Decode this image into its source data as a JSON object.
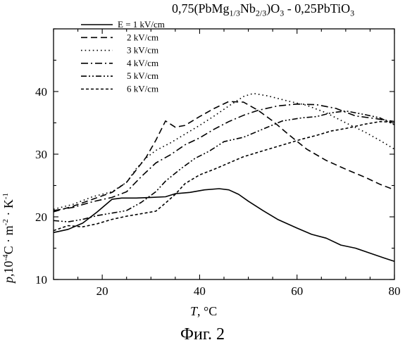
{
  "chart_data": {
    "type": "line",
    "title_parts": {
      "p1": "0,75(PbMg",
      "s1": "1/3",
      "p2": "Nb",
      "s2": "2/3",
      "p3": ")O",
      "s3": "3",
      "p4": " - 0,25PbTiO",
      "s4": "3"
    },
    "ylabel_parts": {
      "p": "p",
      "a": ",10",
      "e1": "-4",
      "b": "C · m",
      "e2": "-2",
      "c": "· K",
      "e3": "-1"
    },
    "xlabel_parts": {
      "t": "T",
      "u": ", °C"
    },
    "xlim": [
      10,
      80
    ],
    "ylim": [
      10,
      50
    ],
    "xticks": [
      20,
      40,
      60,
      80
    ],
    "yticks": [
      10,
      20,
      30,
      40
    ],
    "legend_position": "top-left",
    "series": [
      {
        "name": "E = 1 kV/cm",
        "dash": "solid",
        "points": [
          [
            10,
            17.5
          ],
          [
            13,
            18
          ],
          [
            16,
            19
          ],
          [
            19,
            20.8
          ],
          [
            22,
            22.8
          ],
          [
            24,
            23
          ],
          [
            27,
            23
          ],
          [
            30,
            23.1
          ],
          [
            33,
            23.2
          ],
          [
            35,
            23.7
          ],
          [
            38,
            23.9
          ],
          [
            41,
            24.3
          ],
          [
            44,
            24.5
          ],
          [
            46,
            24.3
          ],
          [
            48,
            23.6
          ],
          [
            50,
            22.5
          ],
          [
            53,
            21
          ],
          [
            56,
            19.6
          ],
          [
            60,
            18.2
          ],
          [
            63,
            17.2
          ],
          [
            66,
            16.6
          ],
          [
            69,
            15.5
          ],
          [
            72,
            15
          ],
          [
            75,
            14.2
          ],
          [
            78,
            13.4
          ],
          [
            80,
            12.9
          ]
        ]
      },
      {
        "name": "2 kV/cm",
        "dash": "dashed",
        "points": [
          [
            10,
            20.8
          ],
          [
            14,
            21.7
          ],
          [
            18,
            22.8
          ],
          [
            22,
            23.9
          ],
          [
            25,
            25.5
          ],
          [
            27,
            27.5
          ],
          [
            29,
            29.5
          ],
          [
            31,
            32.2
          ],
          [
            33,
            35.3
          ],
          [
            35,
            34.3
          ],
          [
            37,
            34.6
          ],
          [
            40,
            36
          ],
          [
            43,
            37.3
          ],
          [
            46,
            38.4
          ],
          [
            49,
            38.3
          ],
          [
            52,
            37
          ],
          [
            55,
            35.3
          ],
          [
            58,
            33.3
          ],
          [
            62,
            30.8
          ],
          [
            66,
            29
          ],
          [
            70,
            27.6
          ],
          [
            74,
            26.3
          ],
          [
            77,
            25.2
          ],
          [
            80,
            24.3
          ]
        ]
      },
      {
        "name": "3 kV/cm",
        "dash": "dotted",
        "points": [
          [
            10,
            21.2
          ],
          [
            14,
            22
          ],
          [
            18,
            23.2
          ],
          [
            22,
            24
          ],
          [
            25,
            25.5
          ],
          [
            27,
            27.7
          ],
          [
            29,
            29.4
          ],
          [
            31,
            30.6
          ],
          [
            34,
            31.8
          ],
          [
            37,
            33.2
          ],
          [
            40,
            34.6
          ],
          [
            43,
            36.1
          ],
          [
            46,
            37.7
          ],
          [
            49,
            39.2
          ],
          [
            51,
            39.7
          ],
          [
            54,
            39.3
          ],
          [
            58,
            38.5
          ],
          [
            62,
            37.8
          ],
          [
            66,
            36.6
          ],
          [
            70,
            35
          ],
          [
            74,
            33.5
          ],
          [
            77,
            32.2
          ],
          [
            80,
            30.8
          ]
        ]
      },
      {
        "name": "4 kV/cm",
        "dash": "dashdot",
        "points": [
          [
            10,
            21
          ],
          [
            14,
            21.5
          ],
          [
            18,
            22.4
          ],
          [
            22,
            23.1
          ],
          [
            25,
            24
          ],
          [
            28,
            26.4
          ],
          [
            31,
            28.6
          ],
          [
            34,
            29.9
          ],
          [
            37,
            31.5
          ],
          [
            40,
            32.6
          ],
          [
            43,
            34
          ],
          [
            46,
            35.2
          ],
          [
            49,
            36.2
          ],
          [
            52,
            37
          ],
          [
            56,
            37.7
          ],
          [
            60,
            38
          ],
          [
            64,
            37.9
          ],
          [
            68,
            37.3
          ],
          [
            72,
            36.1
          ],
          [
            76,
            35.7
          ],
          [
            80,
            35.2
          ]
        ]
      },
      {
        "name": "5 kV/cm",
        "dash": "dashdotdot",
        "points": [
          [
            10,
            19.4
          ],
          [
            13,
            19.2
          ],
          [
            16,
            19.6
          ],
          [
            19,
            20.2
          ],
          [
            22,
            20.6
          ],
          [
            25,
            21
          ],
          [
            28,
            22.3
          ],
          [
            31,
            24
          ],
          [
            33,
            25.7
          ],
          [
            36,
            27.6
          ],
          [
            39,
            29.3
          ],
          [
            42,
            30.5
          ],
          [
            45,
            32
          ],
          [
            49,
            32.7
          ],
          [
            53,
            34
          ],
          [
            57,
            35.3
          ],
          [
            61,
            35.8
          ],
          [
            64,
            36
          ],
          [
            67,
            36.6
          ],
          [
            70,
            36.9
          ],
          [
            74,
            36.3
          ],
          [
            77,
            35.8
          ],
          [
            80,
            34.7
          ]
        ]
      },
      {
        "name": "6 kV/cm",
        "dash": "shortdash",
        "points": [
          [
            10,
            17.8
          ],
          [
            13,
            18.6
          ],
          [
            16,
            18.4
          ],
          [
            19,
            18.9
          ],
          [
            22,
            19.6
          ],
          [
            25,
            20.1
          ],
          [
            28,
            20.5
          ],
          [
            31,
            20.9
          ],
          [
            33,
            22.2
          ],
          [
            35,
            23.6
          ],
          [
            37,
            25.3
          ],
          [
            40,
            26.7
          ],
          [
            43,
            27.6
          ],
          [
            46,
            28.6
          ],
          [
            49,
            29.6
          ],
          [
            52,
            30.3
          ],
          [
            55,
            31
          ],
          [
            58,
            31.7
          ],
          [
            61,
            32.4
          ],
          [
            64,
            33
          ],
          [
            67,
            33.7
          ],
          [
            70,
            34.1
          ],
          [
            74,
            34.8
          ],
          [
            77,
            35.2
          ],
          [
            80,
            35.1
          ]
        ]
      }
    ]
  },
  "caption": "Фиг. 2"
}
